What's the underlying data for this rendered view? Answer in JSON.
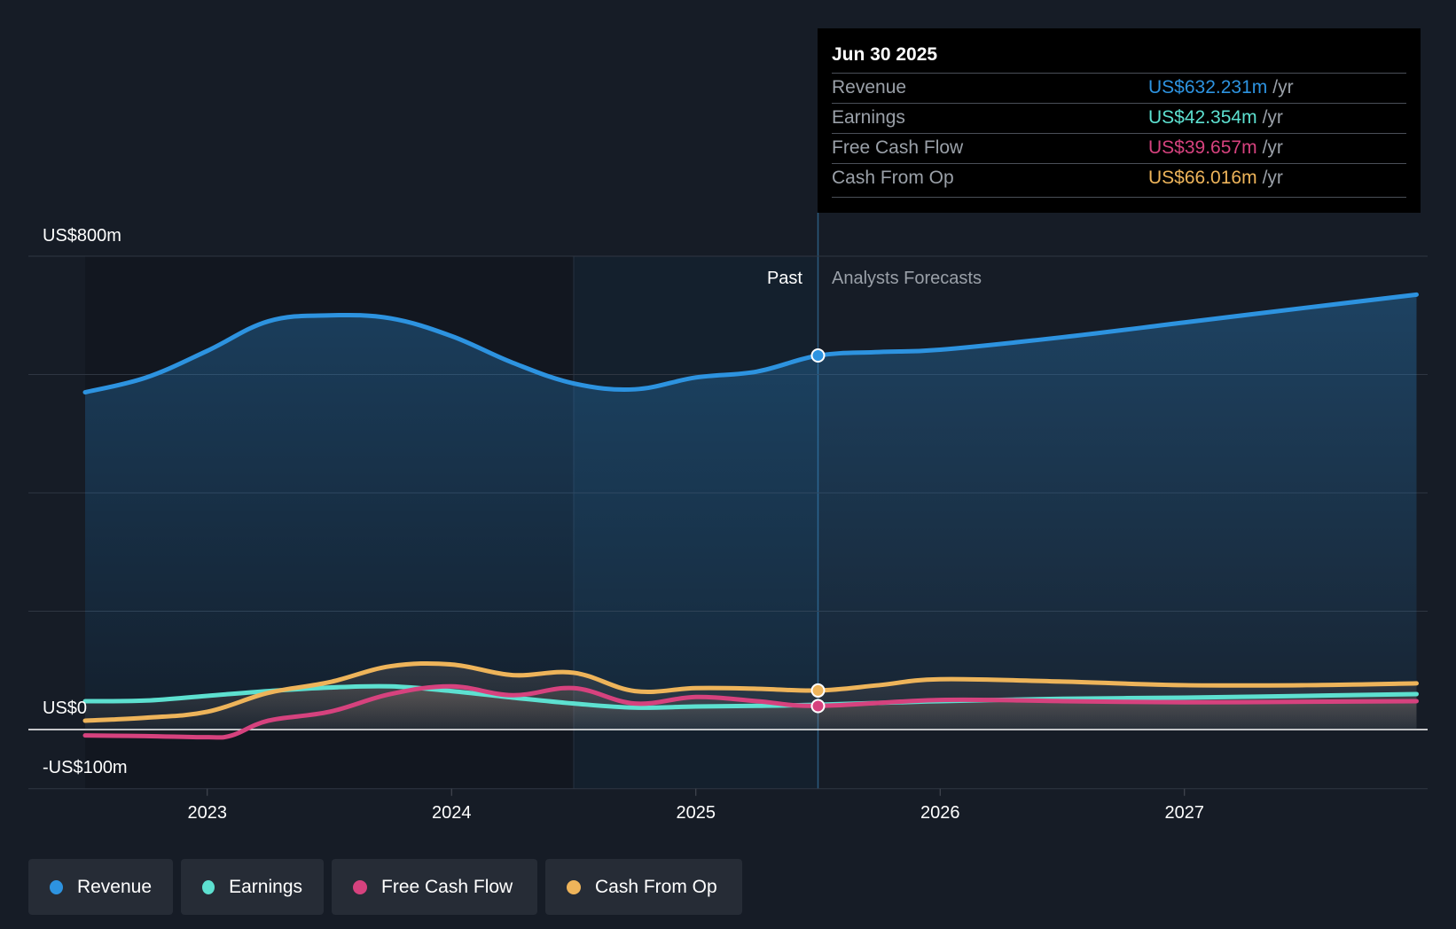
{
  "colors": {
    "background": "#161c26",
    "revenue": "#2d93e0",
    "earnings": "#5de0d0",
    "free_cash_flow": "#d6427e",
    "cash_from_op": "#eeb45a",
    "grid": "#2f3642"
  },
  "chart_data": {
    "type": "line",
    "title": "",
    "xlabel": "",
    "ylabel": "",
    "y_unit_label_top": "US$800m",
    "y_unit_label_zero": "US$0",
    "y_unit_label_bottom": "-US$100m",
    "ylim": [
      -100,
      800
    ],
    "y_gridlines": [
      800,
      600,
      400,
      200,
      0,
      -100
    ],
    "xlim": [
      2022.35,
      2027.95
    ],
    "x_ticks": [
      {
        "value": 2023.0,
        "label": "2023"
      },
      {
        "value": 2024.0,
        "label": "2024"
      },
      {
        "value": 2025.0,
        "label": "2025"
      },
      {
        "value": 2026.0,
        "label": "2026"
      },
      {
        "value": 2027.0,
        "label": "2027"
      }
    ],
    "past_label": "Past",
    "forecast_label": "Analysts Forecasts",
    "current_x": 2025.5,
    "highlight_start_x": 2024.5,
    "series": [
      {
        "name": "Revenue",
        "key": "revenue",
        "x": [
          2022.5,
          2022.75,
          2023.0,
          2023.25,
          2023.5,
          2023.75,
          2024.0,
          2024.25,
          2024.5,
          2024.75,
          2025.0,
          2025.25,
          2025.5,
          2025.75,
          2026.0,
          2026.5,
          2027.0,
          2027.5,
          2027.95
        ],
        "values": [
          570,
          595,
          640,
          690,
          700,
          695,
          665,
          620,
          585,
          575,
          595,
          605,
          632,
          638,
          642,
          663,
          688,
          713,
          735
        ]
      },
      {
        "name": "Earnings",
        "key": "earnings",
        "x": [
          2022.5,
          2022.75,
          2023.0,
          2023.25,
          2023.5,
          2023.75,
          2024.0,
          2024.25,
          2024.5,
          2024.75,
          2025.0,
          2025.25,
          2025.5,
          2026.0,
          2026.5,
          2027.0,
          2027.5,
          2027.95
        ],
        "values": [
          48,
          49,
          57,
          65,
          71,
          73,
          65,
          54,
          44,
          37,
          39,
          40,
          42,
          48,
          52,
          54,
          57,
          60
        ]
      },
      {
        "name": "Free Cash Flow",
        "key": "free_cash_flow",
        "x": [
          2022.5,
          2022.75,
          2023.0,
          2023.1,
          2023.25,
          2023.5,
          2023.75,
          2024.0,
          2024.25,
          2024.5,
          2024.75,
          2025.0,
          2025.25,
          2025.5,
          2026.0,
          2026.5,
          2027.0,
          2027.5,
          2027.95
        ],
        "values": [
          -10,
          -11,
          -13,
          -10,
          15,
          30,
          60,
          73,
          58,
          70,
          44,
          55,
          48,
          40,
          50,
          48,
          46,
          47,
          48
        ]
      },
      {
        "name": "Cash From Op",
        "key": "cash_from_op",
        "x": [
          2022.5,
          2022.75,
          2023.0,
          2023.25,
          2023.5,
          2023.75,
          2024.0,
          2024.25,
          2024.5,
          2024.75,
          2025.0,
          2025.25,
          2025.5,
          2025.75,
          2026.0,
          2026.5,
          2027.0,
          2027.5,
          2027.95
        ],
        "values": [
          15,
          20,
          30,
          62,
          80,
          107,
          110,
          92,
          96,
          65,
          70,
          69,
          66,
          75,
          85,
          81,
          75,
          75,
          78
        ]
      }
    ],
    "markers": [
      {
        "series": "revenue",
        "x": 2025.5,
        "value": 632.231
      },
      {
        "series": "cash_from_op",
        "x": 2025.5,
        "value": 66.016
      },
      {
        "series": "free_cash_flow",
        "x": 2025.5,
        "value": 39.657
      }
    ]
  },
  "tooltip": {
    "date": "Jun 30 2025",
    "unit": "/yr",
    "rows": [
      {
        "label": "Revenue",
        "value": "US$632.231m",
        "key": "revenue"
      },
      {
        "label": "Earnings",
        "value": "US$42.354m",
        "key": "earnings"
      },
      {
        "label": "Free Cash Flow",
        "value": "US$39.657m",
        "key": "free_cash_flow"
      },
      {
        "label": "Cash From Op",
        "value": "US$66.016m",
        "key": "cash_from_op"
      }
    ]
  },
  "legend": {
    "items": [
      {
        "label": "Revenue",
        "key": "revenue"
      },
      {
        "label": "Earnings",
        "key": "earnings"
      },
      {
        "label": "Free Cash Flow",
        "key": "free_cash_flow"
      },
      {
        "label": "Cash From Op",
        "key": "cash_from_op"
      }
    ]
  }
}
